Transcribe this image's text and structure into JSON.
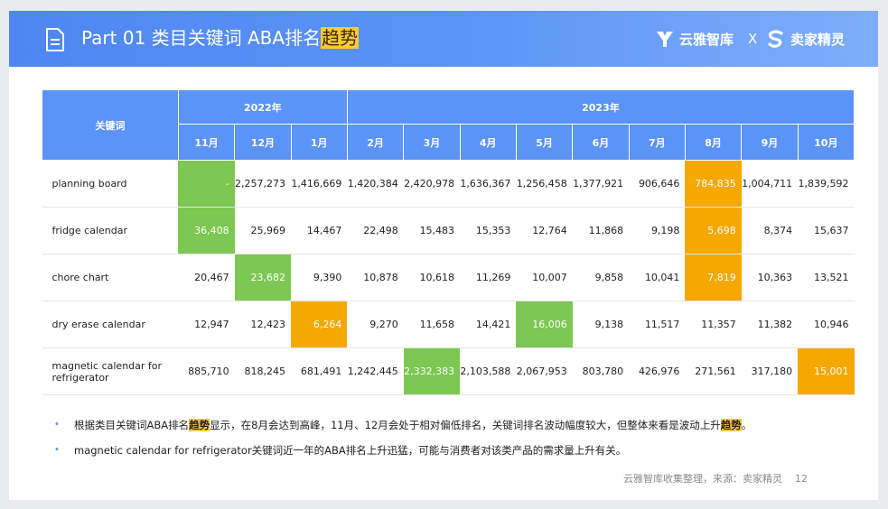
{
  "header": {
    "title_prefix": "Part 01 类目关键词 ABA排名",
    "title_highlight": "趋势",
    "brand_left": "云雅智库",
    "brand_sep": "X",
    "brand_right": "卖家精灵"
  },
  "table": {
    "keyword_header": "关键词",
    "years": [
      {
        "label": "2022年",
        "span": 3
      },
      {
        "label": "2023年",
        "span": 9
      }
    ],
    "months": [
      "11月",
      "12月",
      "1月",
      "2月",
      "3月",
      "4月",
      "5月",
      "6月",
      "7月",
      "8月",
      "9月",
      "10月"
    ],
    "rows": [
      {
        "keyword": "planning board",
        "values": [
          "-",
          "2,257,273",
          "1,416,669",
          "1,420,384",
          "2,420,978",
          "1,636,367",
          "1,256,458",
          "1,377,921",
          "906,646",
          "784,835",
          "1,004,711",
          "1,839,592"
        ],
        "green": [
          0
        ],
        "orange": [
          9
        ]
      },
      {
        "keyword": "fridge calendar",
        "values": [
          "36,408",
          "25,969",
          "14,467",
          "22,498",
          "15,483",
          "15,353",
          "12,764",
          "11,868",
          "9,198",
          "5,698",
          "8,374",
          "15,637"
        ],
        "green": [
          0
        ],
        "orange": [
          9
        ]
      },
      {
        "keyword": "chore chart",
        "values": [
          "20,467",
          "23,682",
          "9,390",
          "10,878",
          "10,618",
          "11,269",
          "10,007",
          "9,858",
          "10,041",
          "7,819",
          "10,363",
          "13,521"
        ],
        "green": [
          1
        ],
        "orange": [
          9
        ]
      },
      {
        "keyword": "dry erase calendar",
        "values": [
          "12,947",
          "12,423",
          "6,264",
          "9,270",
          "11,658",
          "14,421",
          "16,006",
          "9,138",
          "11,517",
          "11,357",
          "11,382",
          "10,946"
        ],
        "green": [
          6
        ],
        "orange": [
          2
        ]
      },
      {
        "keyword": "magnetic calendar for refrigerator",
        "values": [
          "885,710",
          "818,245",
          "681,491",
          "1,242,445",
          "2,332,383",
          "2,103,588",
          "2,067,953",
          "803,780",
          "426,976",
          "271,561",
          "317,180",
          "15,001"
        ],
        "green": [
          4
        ],
        "orange": [
          11
        ]
      }
    ]
  },
  "bullets": [
    {
      "parts": [
        {
          "text": "根据类目关键词ABA排名",
          "hl": false
        },
        {
          "text": "趋势",
          "hl": true
        },
        {
          "text": "显示，在8月会达到高峰，11月、12月会处于相对偏低排名，关键词排名波动幅度较大，但整体来看是波动上升",
          "hl": false
        },
        {
          "text": "趋势",
          "hl": true
        },
        {
          "text": "。",
          "hl": false
        }
      ]
    },
    {
      "parts": [
        {
          "text": "magnetic calendar for refrigerator关键词近一年的ABA排名上升迅猛，可能与消费者对该类产品的需求量上升有关。",
          "hl": false
        }
      ]
    }
  ],
  "footer": {
    "source": "云雅智库收集整理，来源：卖家精灵",
    "page": "12"
  },
  "colors": {
    "header_blue": "#5b93f6",
    "green_cell": "#7dc752",
    "orange_cell": "#f5a800",
    "highlight_yellow": "#ffc934"
  }
}
